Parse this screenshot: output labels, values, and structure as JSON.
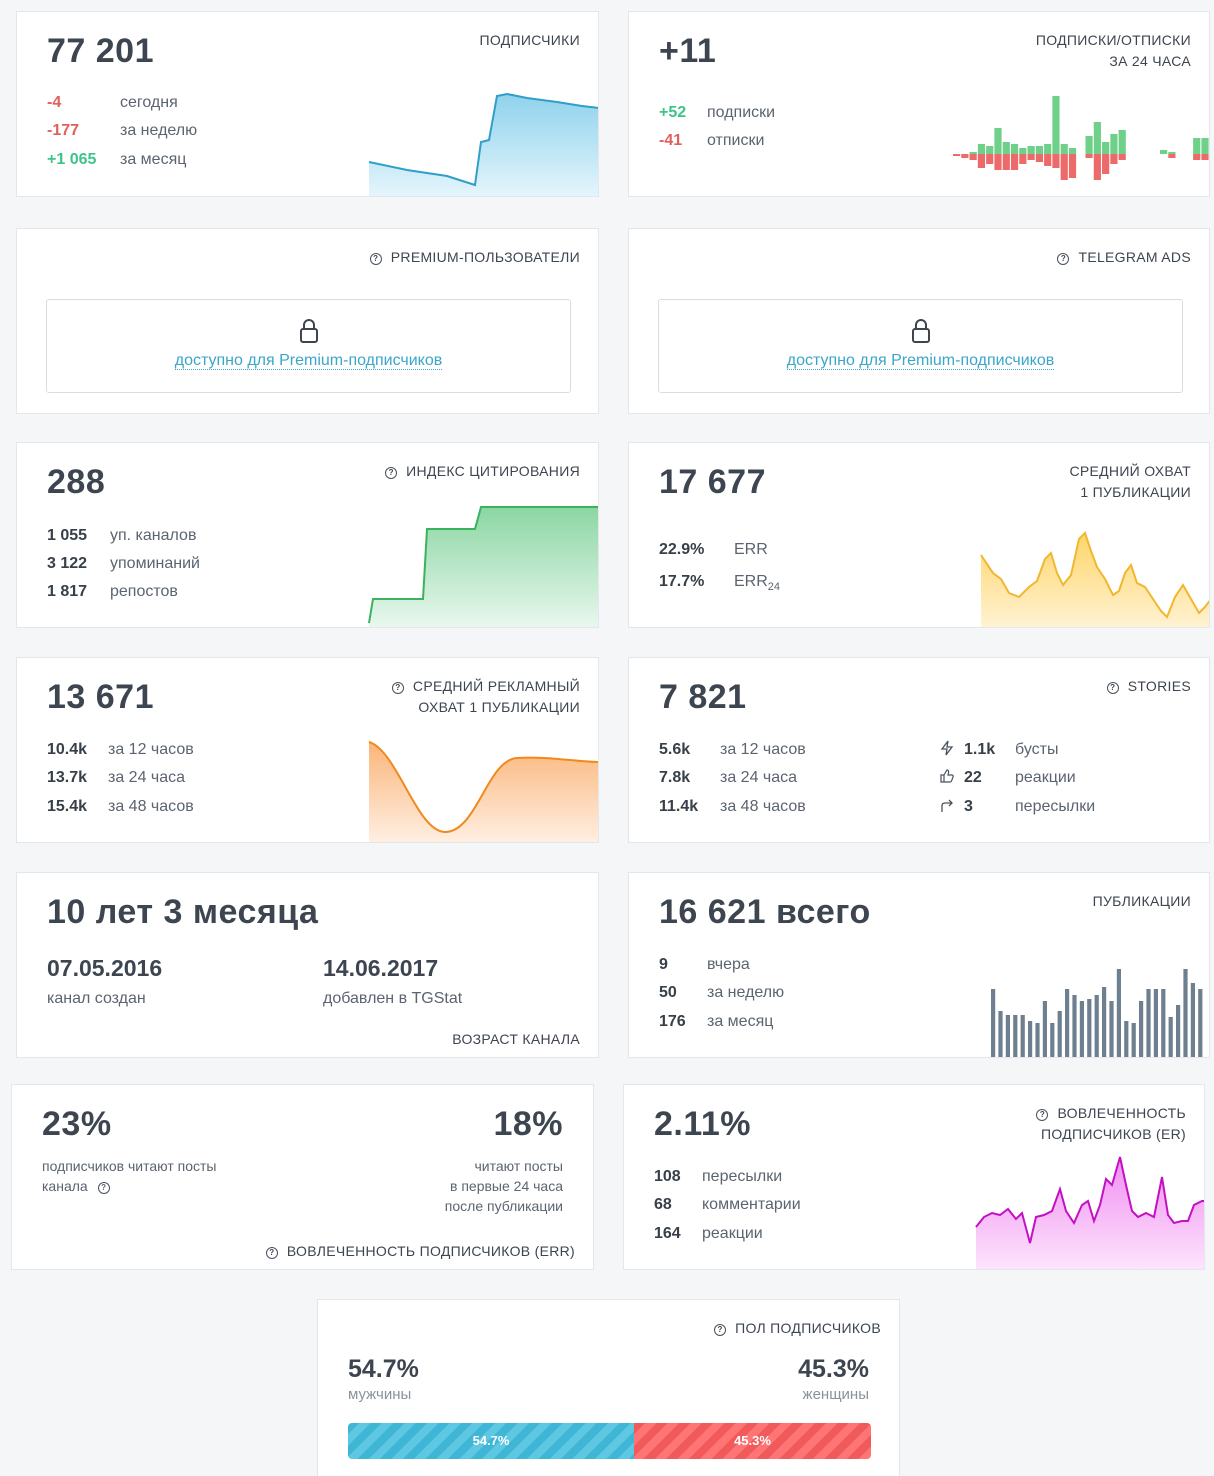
{
  "subscribers": {
    "title": "ПОДПИСЧИКИ",
    "value": "77 201",
    "rows": [
      {
        "value": "-4",
        "label": "сегодня"
      },
      {
        "value": "-177",
        "label": "за неделю"
      },
      {
        "value": "+1 065",
        "label": "за месяц"
      }
    ]
  },
  "subs_24h": {
    "title_line1": "ПОДПИСКИ/ОТПИСКИ",
    "title_line2": "ЗА 24 ЧАСА",
    "value": "+11",
    "rows": [
      {
        "value": "+52",
        "label": "подписки"
      },
      {
        "value": "-41",
        "label": "отписки"
      }
    ]
  },
  "premium_users": {
    "title": "PREMIUM-ПОЛЬЗОВАТЕЛИ",
    "link": "доступно для Premium-подписчиков"
  },
  "telegram_ads": {
    "title": "TELEGRAM ADS",
    "link": "доступно для Premium-подписчиков"
  },
  "citation": {
    "title": "ИНДЕКС ЦИТИРОВАНИЯ",
    "value": "288",
    "rows": [
      {
        "value": "1 055",
        "label": "уп. каналов"
      },
      {
        "value": "3 122",
        "label": "упоминаний"
      },
      {
        "value": "1 817",
        "label": "репостов"
      }
    ]
  },
  "avg_reach": {
    "title_line1": "СРЕДНИЙ ОХВАТ",
    "title_line2": "1 ПУБЛИКАЦИИ",
    "value": "17 677",
    "rows": [
      {
        "value": "22.9%",
        "label": "ERR"
      },
      {
        "value": "17.7%",
        "label": "ERR",
        "sub": "24"
      }
    ]
  },
  "ad_reach": {
    "title_line1": "СРЕДНИЙ РЕКЛАМНЫЙ",
    "title_line2": "ОХВАТ 1 ПУБЛИКАЦИИ",
    "value": "13 671",
    "rows": [
      {
        "value": "10.4k",
        "label": "за 12 часов"
      },
      {
        "value": "13.7k",
        "label": "за 24 часа"
      },
      {
        "value": "15.4k",
        "label": "за 48 часов"
      }
    ]
  },
  "stories": {
    "title": "STORIES",
    "value": "7 821",
    "rows": [
      {
        "value": "5.6k",
        "label": "за 12 часов"
      },
      {
        "value": "7.8k",
        "label": "за 24 часа"
      },
      {
        "value": "11.4k",
        "label": "за 48 часов"
      }
    ],
    "side": [
      {
        "icon": "lightning-icon",
        "value": "1.1k",
        "label": "бусты"
      },
      {
        "icon": "thumbs-up-icon",
        "value": "22",
        "label": "реакции"
      },
      {
        "icon": "share-arrow-icon",
        "value": "3",
        "label": "пересылки"
      }
    ]
  },
  "age": {
    "value": "10 лет 3 месяца",
    "created_date": "07.05.2016",
    "created_label": "канал создан",
    "added_date": "14.06.2017",
    "added_label": "добавлен в TGStat",
    "title": "ВОЗРАСТ КАНАЛА"
  },
  "publications": {
    "title": "ПУБЛИКАЦИИ",
    "value": "16 621 всего",
    "rows": [
      {
        "value": "9",
        "label": "вчера"
      },
      {
        "value": "50",
        "label": "за неделю"
      },
      {
        "value": "176",
        "label": "за месяц"
      }
    ]
  },
  "err": {
    "left_value": "23%",
    "left_line1": "подписчиков читают посты",
    "left_line2": "канала",
    "right_value": "18%",
    "right_line1": "читают посты",
    "right_line2": "в первые 24 часа",
    "right_line3": "после публикации",
    "title": "ВОВЛЕЧЕННОСТЬ ПОДПИСЧИКОВ (ERR)"
  },
  "er": {
    "title_line1": "ВОВЛЕЧЕННОСТЬ",
    "title_line2": "ПОДПИСЧИКОВ (ER)",
    "value": "2.11%",
    "rows": [
      {
        "value": "108",
        "label": "пересылки"
      },
      {
        "value": "68",
        "label": "комментарии"
      },
      {
        "value": "164",
        "label": "реакции"
      }
    ]
  },
  "gender": {
    "title": "ПОЛ ПОДПИСЧИКОВ",
    "male_value": "54.7%",
    "male_label": "мужчины",
    "female_value": "45.3%",
    "female_label": "женщины",
    "male_fraction": 0.547,
    "female_fraction": 0.453,
    "male_bar_label": "54.7%",
    "female_bar_label": "45.3%",
    "male_color": "#3fb6d6",
    "female_color": "#f05a5a"
  },
  "colors": {
    "positive": "#3ec48a",
    "negative": "#e0605c",
    "link": "#3aa6c9"
  }
}
